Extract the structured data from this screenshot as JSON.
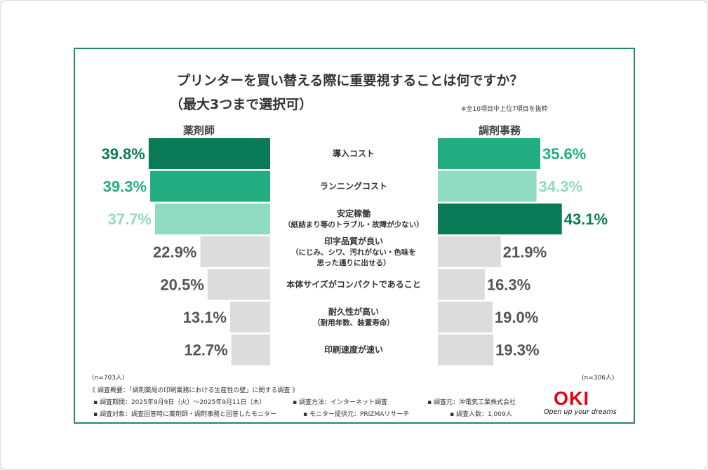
{
  "chart_data": {
    "type": "bar",
    "title": "プリンターを買い替える際に重要視することは何ですか？",
    "subtitle": "（最大3つまで選択可）",
    "note": "※全10項目中上位7項目を抜粋",
    "categories": [
      "導入コスト",
      "ランニングコスト",
      "安定稼働\n（紙詰まり等のトラブル・故障が少ない）",
      "印字品質が良い\n（にじみ、シワ、汚れがない・色味を\n思った通りに出せる）",
      "本体サイズがコンパクトであること",
      "耐久性が高い\n（耐用年数、装置寿命）",
      "印刷速度が速い"
    ],
    "series": [
      {
        "name": "薬剤師",
        "n": "(n=703人)",
        "values": [
          39.8,
          39.3,
          37.7,
          22.9,
          20.5,
          13.1,
          12.7
        ],
        "colors": [
          "#0b7a56",
          "#22ad80",
          "#8fdcc3",
          "#dcdcdc",
          "#dcdcdc",
          "#dcdcdc",
          "#dcdcdc"
        ],
        "label_colors": [
          "#0b7a56",
          "#22ad80",
          "#8fdcc3",
          "#555555",
          "#555555",
          "#555555",
          "#555555"
        ]
      },
      {
        "name": "調剤事務",
        "n": "(n=306人)",
        "values": [
          35.6,
          34.3,
          43.1,
          21.9,
          16.3,
          19.0,
          19.3
        ],
        "colors": [
          "#22ad80",
          "#8fdcc3",
          "#0b7a56",
          "#dcdcdc",
          "#dcdcdc",
          "#dcdcdc",
          "#dcdcdc"
        ],
        "label_colors": [
          "#22ad80",
          "#8fdcc3",
          "#0b7a56",
          "#555555",
          "#555555",
          "#555555",
          "#555555"
        ]
      }
    ],
    "unit": "%"
  },
  "footer": {
    "summary": "《 調査概要：「調剤薬局の印刷業務における生産性の壁」に関する調査 》",
    "period": "▪ 調査期間：2025年9月9日（火）～2025年9月11日（木）",
    "method": "▪ 調査方法：インターネット調査",
    "source": "▪ 調査元：沖電気工業株式会社",
    "target": "▪ 調査対象：調査回答時に薬剤師・調剤事務と回答したモニター",
    "provider": "▪ モニター提供元：PRIZMAリサーチ",
    "count": "▪ 調査人数：1,009人"
  },
  "logo": {
    "text": "OKI",
    "tagline": "Open up your dreams"
  }
}
